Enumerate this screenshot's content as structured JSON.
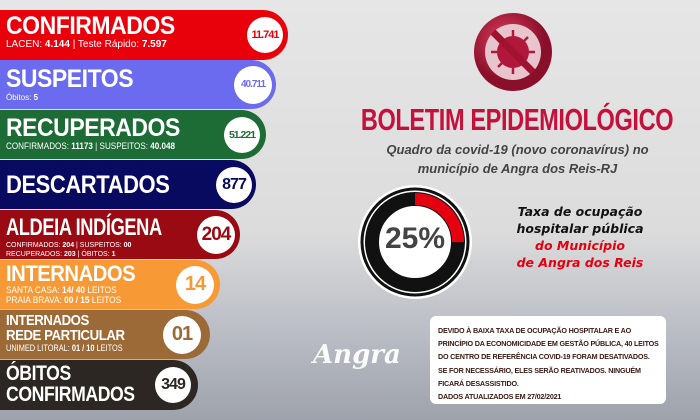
{
  "confirmados": {
    "title": "CONFIRMADOS",
    "lacen_label": "LACEN:",
    "lacen": "4.144",
    "teste_label": "| Teste Rápido:",
    "teste": "7.597",
    "total": "11.741",
    "color": "#e8000b"
  },
  "suspeitos": {
    "title": "SUSPEITOS",
    "obitos_label": "Óbitos:",
    "obitos": "5",
    "total": "40.711",
    "color": "#6b6bef"
  },
  "recuperados": {
    "title": "RECUPERADOS",
    "conf_label": "CONFIRMADOS:",
    "conf": "11173",
    "susp_label": "| SUSPEITOS:",
    "susp": "40.048",
    "total": "51.221",
    "color": "#1d6b35"
  },
  "descartados": {
    "title": "DESCARTADOS",
    "total": "877",
    "color": "#070a5e"
  },
  "aldeia": {
    "title": "ALDEIA INDÍGENA",
    "line1_a": "CONFIRMADOS:",
    "line1_b": "204",
    "line1_c": "| SUSPEITOS:",
    "line1_d": "00",
    "line2_a": "RECUPERADOS:",
    "line2_b": "203",
    "line2_c": "| ÓBITOS:",
    "line2_d": "1",
    "total": "204",
    "color": "#9a0a12"
  },
  "internados": {
    "title": "INTERNADOS",
    "line1_a": "SANTA CASA:",
    "line1_b": "14/ 40",
    "line1_c": "LEITOS",
    "line2_a": "PRAIA BRAVA:",
    "line2_b": "00 / 15",
    "line2_c": "LEITOS",
    "total": "14",
    "color": "#f79a35"
  },
  "particular": {
    "title1": "INTERNADOS",
    "title2": "REDE PARTICULAR",
    "line_a": "UNIMED LITORAL:",
    "line_b": "01 / 10",
    "line_c": "LEITOS",
    "total": "01",
    "color": "#9b6a36"
  },
  "obitos": {
    "title1": "ÓBITOS",
    "title2": "CONFIRMADOS",
    "total": "349",
    "color": "#2d2723"
  },
  "header": {
    "title": "BOLETIM EPIDEMIOLÓGICO",
    "subtitle_1": "Quadro da covid-19 (novo coronavírus) no",
    "subtitle_2": "município de Angra dos Reis-RJ",
    "icon": "no-virus-icon"
  },
  "ocupacao": {
    "percent_label": "25%",
    "percent": 25,
    "line1": "Taxa de ocupação",
    "line2": "hospitalar pública",
    "line3": "do Município",
    "line4": "de Angra dos Reis"
  },
  "note": {
    "text": "DEVIDO À BAIXA TAXA DE OCUPAÇÃO HOSPITALAR E AO PRINCÍPIO DA ECONOMICIDADE EM GESTÃO PÚBLICA, 40 LEITOS DO CENTRO DE REFERÊNCIA COVID-19 FORAM DESATIVADOS. SE FOR NECESSÁRIO, ELES SERÃO REATIVADOS.  NINGUÉM FICARÁ DESASSISTIDO.",
    "date": "DADOS ATUALIZADOS EM 27/02/2021"
  },
  "logo": "Angra"
}
